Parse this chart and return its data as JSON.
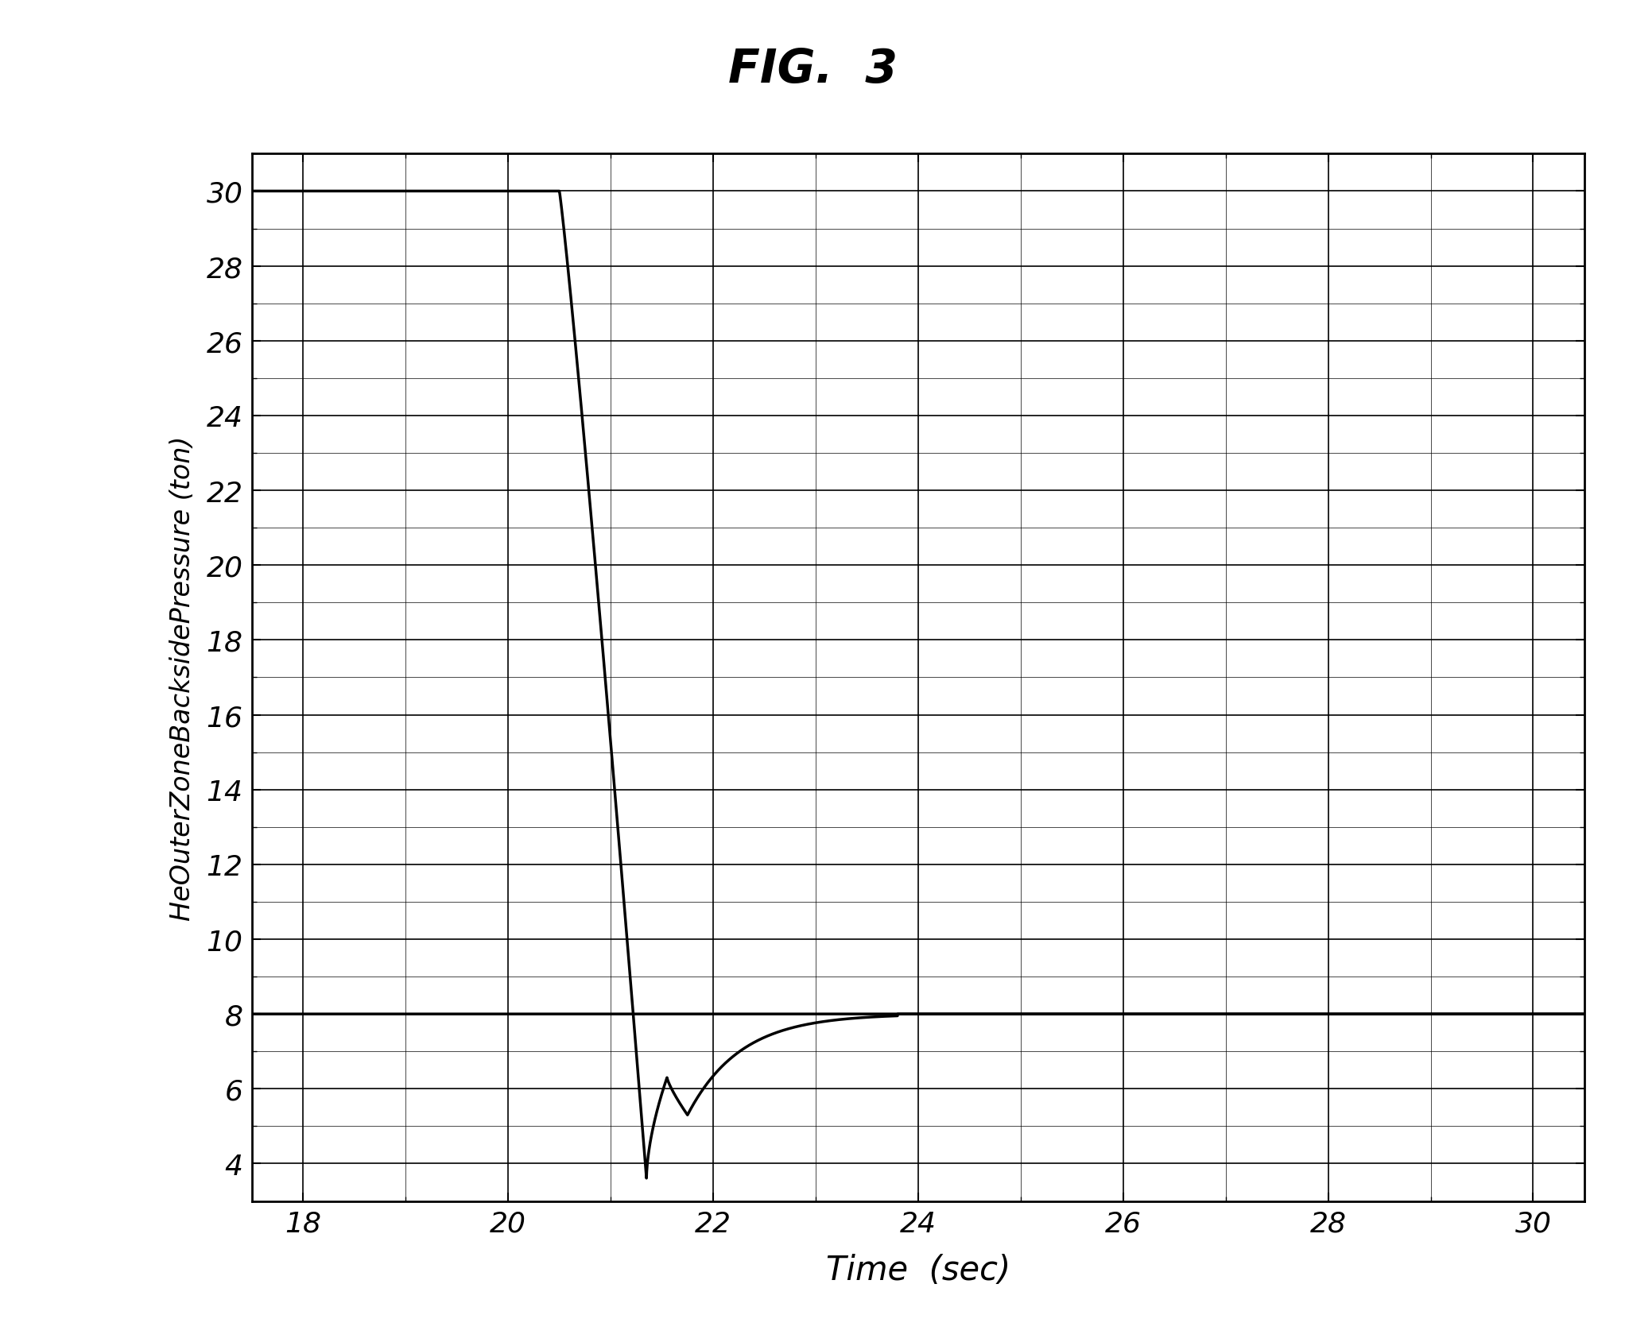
{
  "title": "FIG.  3",
  "xlabel": "Time  (sec)",
  "ylabel": "HeOuterZoneBacksidePressure (ton)",
  "xlim": [
    17.5,
    30.5
  ],
  "ylim": [
    3.0,
    31.0
  ],
  "xticks": [
    18,
    20,
    22,
    24,
    26,
    28,
    30
  ],
  "yticks": [
    4,
    6,
    8,
    10,
    12,
    14,
    16,
    18,
    20,
    22,
    24,
    26,
    28,
    30
  ],
  "background_color": "#ffffff",
  "line_color": "#000000",
  "grid_color": "#000000",
  "figsize": [
    20.44,
    16.9
  ],
  "dpi": 100,
  "drop_start": 20.5,
  "drop_peak": 29.5,
  "drop_bottom_t": 21.35,
  "drop_bottom_v": 3.6,
  "overshoot_t": 21.55,
  "overshoot_v": 6.3,
  "dip2_t": 21.75,
  "dip2_v": 5.3,
  "settle_t": 23.8,
  "setpoint": 8.0,
  "initial": 30.0
}
